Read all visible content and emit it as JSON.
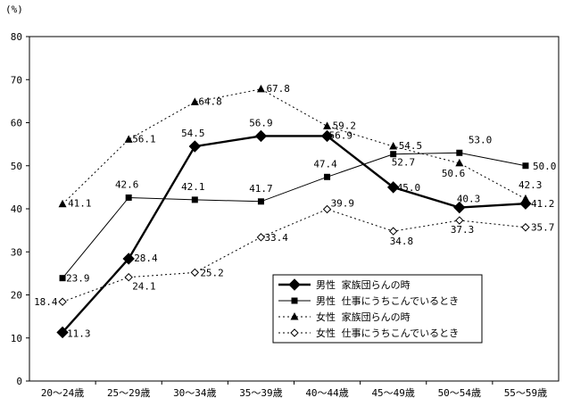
{
  "chart_data": {
    "type": "line",
    "unit_label": "(%)",
    "categories": [
      "20～24歳",
      "25～29歳",
      "30～34歳",
      "35～39歳",
      "40～44歳",
      "45～49歳",
      "50～54歳",
      "55～59歳"
    ],
    "ylim": [
      0,
      80
    ],
    "yticks": [
      0,
      10,
      20,
      30,
      40,
      50,
      60,
      70,
      80
    ],
    "grid": false,
    "legend_position": "bottom-right",
    "series": [
      {
        "name": "男性 家族団らんの時",
        "values": [
          11.3,
          28.4,
          54.5,
          56.9,
          56.9,
          45.0,
          40.3,
          41.2
        ],
        "value_labels": [
          "11.3",
          "28.4",
          "54.5",
          "56.9",
          "56.9",
          "45.0",
          "40.3",
          "41.2"
        ],
        "style": "solid-bold",
        "marker": "diamond-filled",
        "color": "#000000"
      },
      {
        "name": "男性 仕事にうちこんでいるとき",
        "values": [
          23.9,
          42.6,
          42.1,
          41.7,
          47.4,
          52.7,
          53.0,
          50.0
        ],
        "value_labels": [
          "23.9",
          "42.6",
          "42.1",
          "41.7",
          "47.4",
          "52.7",
          "53.0",
          "50.0"
        ],
        "style": "solid-thin",
        "marker": "square-filled",
        "color": "#000000"
      },
      {
        "name": "女性 家族団らんの時",
        "values": [
          41.1,
          56.1,
          64.8,
          67.8,
          59.2,
          54.5,
          50.6,
          42.3
        ],
        "value_labels": [
          "41.1",
          "56.1",
          "64.8",
          "67.8",
          "59.2",
          "54.5",
          "50.6",
          "42.3"
        ],
        "style": "dashed",
        "marker": "triangle-filled",
        "color": "#000000"
      },
      {
        "name": "女性 仕事にうちこんでいるとき",
        "values": [
          18.4,
          24.1,
          25.2,
          33.4,
          39.9,
          34.8,
          37.3,
          35.7
        ],
        "value_labels": [
          "18.4",
          "24.1",
          "25.2",
          "33.4",
          "39.9",
          "34.8",
          "37.3",
          "35.7"
        ],
        "style": "dashed",
        "marker": "diamond-open",
        "color": "#000000"
      }
    ]
  }
}
